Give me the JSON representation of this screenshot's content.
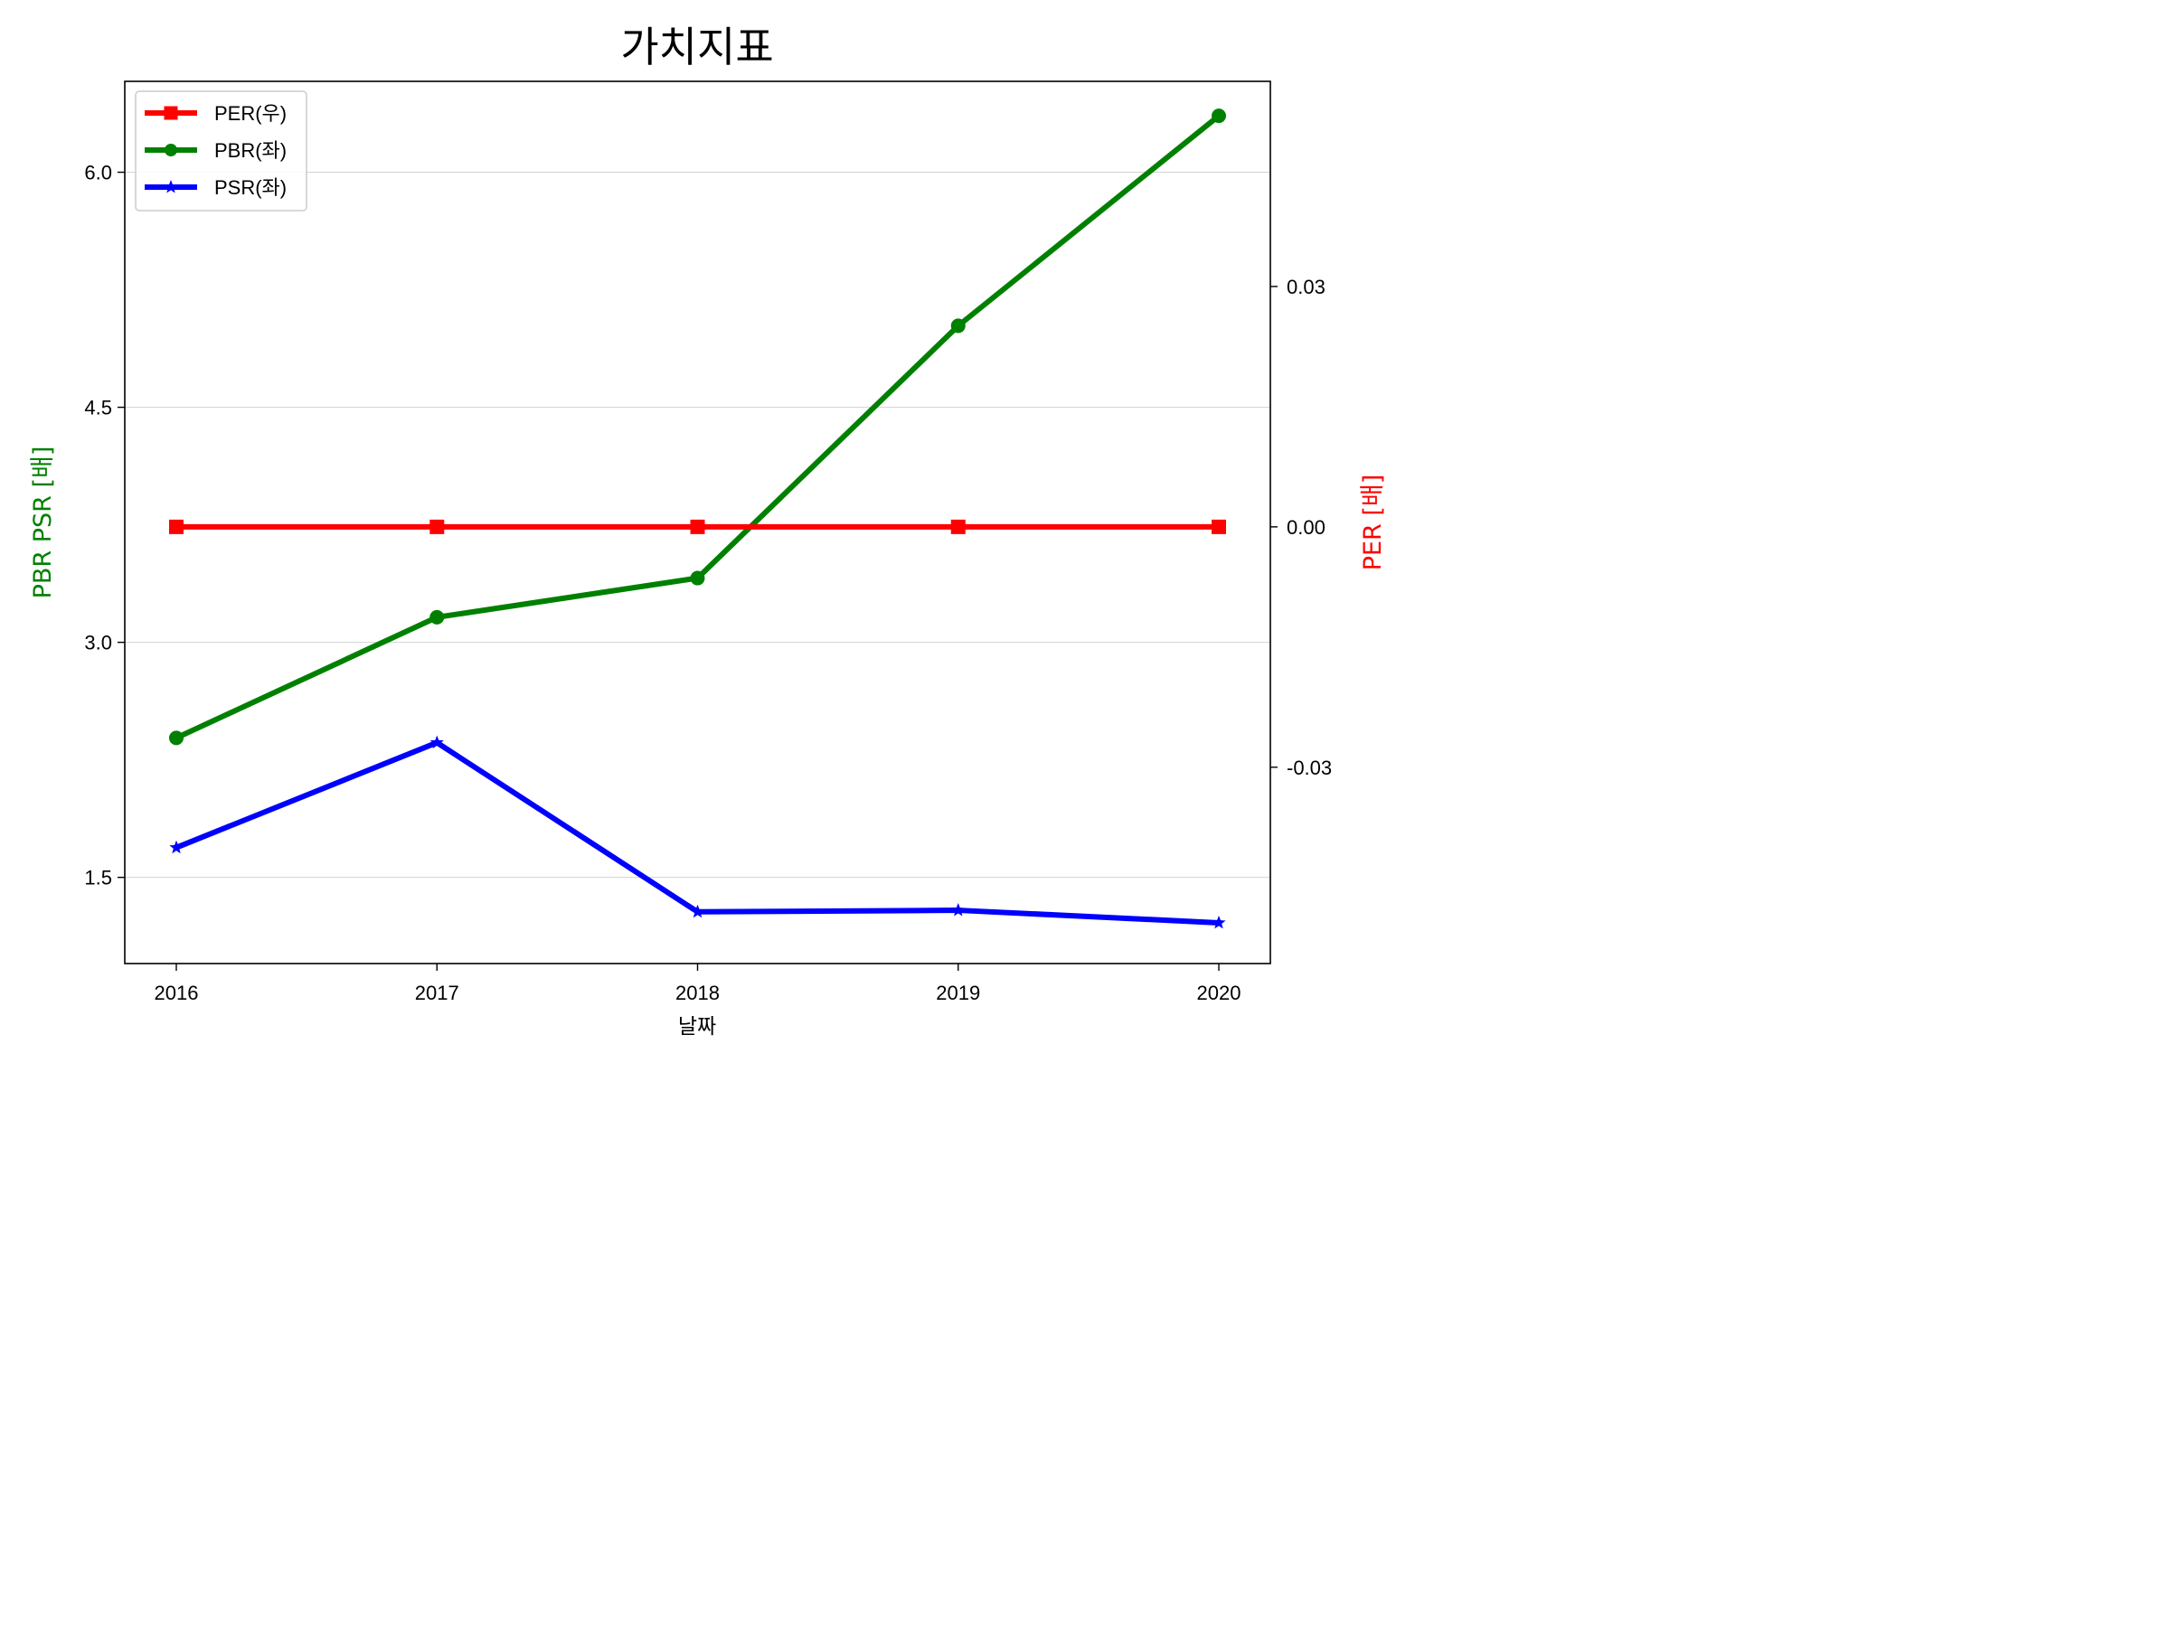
{
  "chart_data": {
    "type": "line",
    "title": "가치지표",
    "xlabel": "날짜",
    "ylabel_left": "PBR PSR [배]",
    "ylabel_right": "PER [배]",
    "categories": [
      "2016",
      "2017",
      "2018",
      "2019",
      "2020"
    ],
    "left_axis": {
      "ylim": [
        0.95,
        6.58
      ],
      "ticks": [
        1.5,
        3.0,
        4.5,
        6.0
      ],
      "tick_labels": [
        "1.5",
        "3.0",
        "4.5",
        "6.0"
      ],
      "label_color": "#008000"
    },
    "right_axis": {
      "ylim": [
        -0.0545,
        0.0556
      ],
      "ticks": [
        -0.03,
        0.0,
        0.03
      ],
      "tick_labels": [
        "-0.03",
        "0.00",
        "0.03"
      ],
      "label_color": "#ff0000"
    },
    "grid": "horizontal (left axis)",
    "legend_position": "top-left",
    "series": [
      {
        "name": "PER(우)",
        "axis": "right",
        "color": "#ff0000",
        "marker": "square",
        "values": [
          0.0,
          0.0,
          0.0,
          0.0,
          0.0
        ]
      },
      {
        "name": "PBR(좌)",
        "axis": "left",
        "color": "#008000",
        "marker": "circle",
        "values": [
          2.39,
          3.16,
          3.41,
          5.02,
          6.36
        ]
      },
      {
        "name": "PSR(좌)",
        "axis": "left",
        "color": "#0000ff",
        "marker": "star",
        "values": [
          1.69,
          2.36,
          1.28,
          1.29,
          1.21
        ]
      }
    ]
  }
}
